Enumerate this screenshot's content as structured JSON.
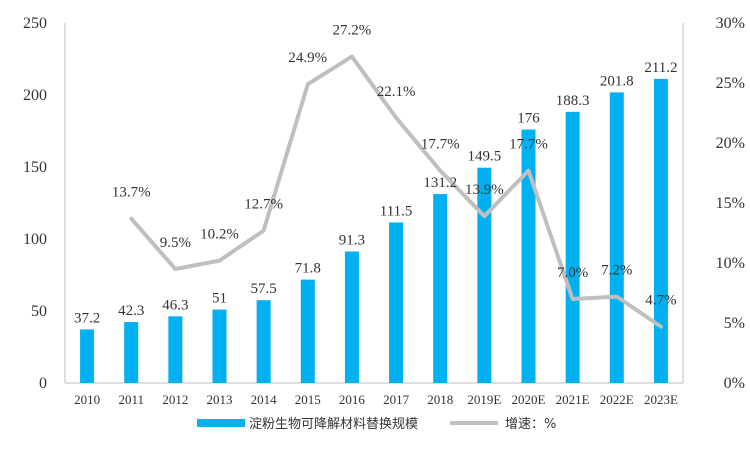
{
  "chart_data": {
    "type": "bar",
    "categories": [
      "2010",
      "2011",
      "2012",
      "2013",
      "2014",
      "2015",
      "2016",
      "2017",
      "2018",
      "2019E",
      "2020E",
      "2021E",
      "2022E",
      "2023E"
    ],
    "series": [
      {
        "name": "淀粉生物可降解材料替换规模",
        "type": "bar",
        "axis": "left",
        "color": "#00b0f0",
        "values": [
          37.2,
          42.3,
          46.3,
          51,
          57.5,
          71.8,
          91.3,
          111.5,
          131.2,
          149.5,
          176,
          188.3,
          201.8,
          211.2
        ],
        "labels": [
          "37.2",
          "42.3",
          "46.3",
          "51",
          "57.5",
          "71.8",
          "91.3",
          "111.5",
          "131.2",
          "149.5",
          "176",
          "188.3",
          "201.8",
          "211.2"
        ]
      },
      {
        "name": "增速：%",
        "type": "line",
        "axis": "right",
        "color": "#bfbfbf",
        "values": [
          null,
          13.7,
          9.5,
          10.2,
          12.7,
          24.9,
          27.2,
          22.1,
          17.7,
          13.9,
          17.7,
          7.0,
          7.2,
          4.7
        ],
        "labels": [
          "",
          "13.7%",
          "9.5%",
          "10.2%",
          "12.7%",
          "24.9%",
          "27.2%",
          "22.1%",
          "17.7%",
          "13.9%",
          "17.7%",
          "7.0%",
          "7.2%",
          "4.7%"
        ]
      }
    ],
    "y_left": {
      "min": 0,
      "max": 250,
      "ticks": [
        "0",
        "50",
        "100",
        "150",
        "200",
        "250"
      ]
    },
    "y_right": {
      "min": 0,
      "max": 30,
      "ticks": [
        "0%",
        "5%",
        "10%",
        "15%",
        "20%",
        "25%",
        "30%"
      ]
    },
    "legend_position": "bottom",
    "grid": false
  }
}
